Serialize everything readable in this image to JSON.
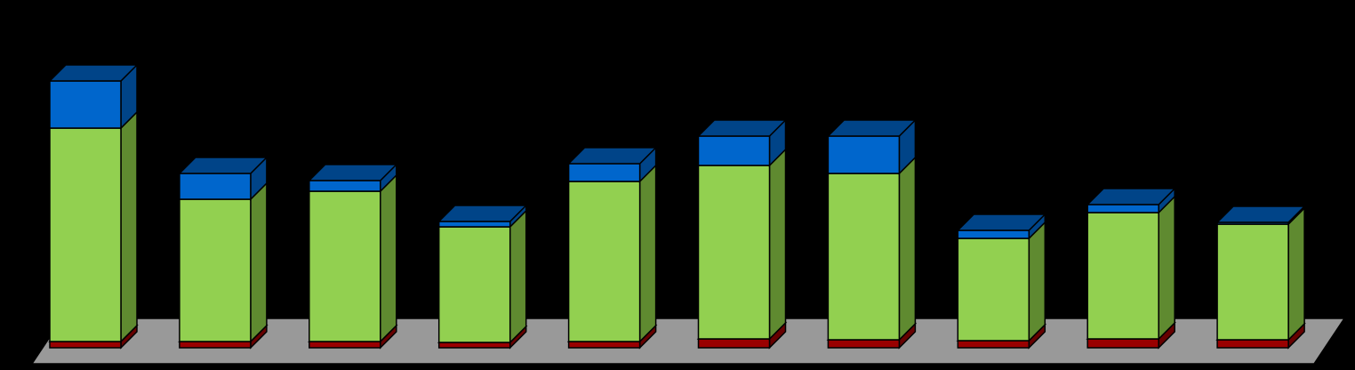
{
  "chart_data": {
    "type": "bar",
    "stacking": "stacked",
    "style": "3d",
    "grid": false,
    "legend": "none",
    "title": "",
    "xlabel": "",
    "ylabel": "",
    "ylim": [
      0,
      330
    ],
    "categories": [
      "",
      "",
      "",
      "",
      "",
      "",
      "",
      "",
      "",
      ""
    ],
    "series": [
      {
        "values": [
          7,
          7,
          7,
          6,
          7,
          10,
          9,
          8,
          10,
          9
        ],
        "color": "#990000",
        "side_color": "#660000"
      },
      {
        "values": [
          240,
          160,
          169,
          130,
          180,
          195,
          187,
          115,
          142,
          130
        ],
        "color": "#92D050",
        "side_color": "#5F8A30"
      },
      {
        "values": [
          53,
          29,
          12,
          6,
          20,
          33,
          42,
          9,
          9,
          2
        ],
        "color": "#0066CC",
        "side_color": "#004488"
      }
    ],
    "colors": {
      "background": "#000000",
      "floor": "#999999",
      "outline": "#000000"
    }
  }
}
